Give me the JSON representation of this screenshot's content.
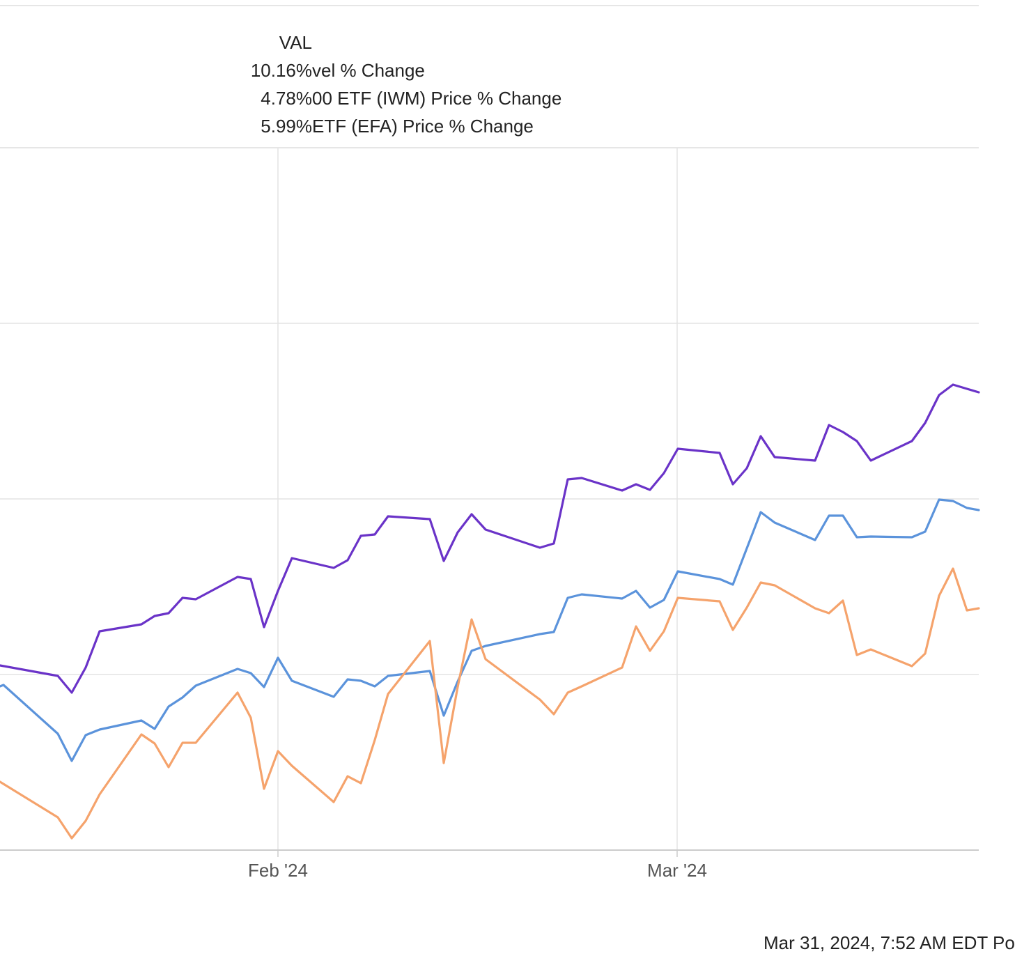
{
  "legend": {
    "value_header": "VAL",
    "rows": [
      {
        "name": "vel % Change",
        "value": "10.16%"
      },
      {
        "name": "00 ETF (IWM) Price % Change",
        "value": "4.78%"
      },
      {
        "name": "ETF (EFA) Price % Change",
        "value": "5.99%"
      }
    ]
  },
  "footer": {
    "text": "Mar 31, 2024, 7:52 AM EDT Po"
  },
  "chart_data": {
    "type": "line",
    "x_tick_labels": [
      "Feb '24",
      "Mar '24"
    ],
    "grid": true,
    "legend_placement": "top-left",
    "series": [
      {
        "name": "vel % Change",
        "color": "#6a33c8",
        "points": [
          [
            0,
            955
          ],
          [
            83,
            970
          ],
          [
            103,
            994
          ],
          [
            123,
            958
          ],
          [
            143,
            906
          ],
          [
            203,
            896
          ],
          [
            222,
            884
          ],
          [
            242,
            880
          ],
          [
            262,
            858
          ],
          [
            281,
            860
          ],
          [
            341,
            828
          ],
          [
            360,
            831
          ],
          [
            379,
            900
          ],
          [
            399,
            848
          ],
          [
            419,
            801
          ],
          [
            479,
            815
          ],
          [
            499,
            804
          ],
          [
            518,
            769
          ],
          [
            538,
            767
          ],
          [
            557,
            741
          ],
          [
            617,
            745
          ],
          [
            637,
            805
          ],
          [
            657,
            764
          ],
          [
            677,
            738
          ],
          [
            697,
            760
          ],
          [
            775,
            786
          ],
          [
            795,
            780
          ],
          [
            815,
            688
          ],
          [
            835,
            686
          ],
          [
            893,
            704
          ],
          [
            913,
            695
          ],
          [
            933,
            703
          ],
          [
            953,
            679
          ],
          [
            973,
            644
          ],
          [
            1033,
            650
          ],
          [
            1052,
            695
          ],
          [
            1072,
            672
          ],
          [
            1092,
            626
          ],
          [
            1112,
            656
          ],
          [
            1170,
            661
          ],
          [
            1190,
            610
          ],
          [
            1210,
            620
          ],
          [
            1230,
            633
          ],
          [
            1250,
            661
          ],
          [
            1309,
            633
          ],
          [
            1328,
            607
          ],
          [
            1348,
            567
          ],
          [
            1368,
            552
          ],
          [
            1388,
            558
          ],
          [
            1405,
            563
          ]
        ]
      },
      {
        "name": "00 ETF (IWM) Price % Change",
        "color": "#5b93db",
        "points": [
          [
            0,
            985
          ],
          [
            5,
            983
          ],
          [
            83,
            1053
          ],
          [
            103,
            1092
          ],
          [
            123,
            1055
          ],
          [
            143,
            1047
          ],
          [
            203,
            1034
          ],
          [
            222,
            1046
          ],
          [
            242,
            1014
          ],
          [
            262,
            1001
          ],
          [
            281,
            984
          ],
          [
            341,
            960
          ],
          [
            360,
            966
          ],
          [
            379,
            986
          ],
          [
            399,
            944
          ],
          [
            419,
            977
          ],
          [
            479,
            1000
          ],
          [
            499,
            975
          ],
          [
            518,
            977
          ],
          [
            538,
            985
          ],
          [
            557,
            970
          ],
          [
            617,
            963
          ],
          [
            637,
            1027
          ],
          [
            657,
            978
          ],
          [
            677,
            934
          ],
          [
            697,
            927
          ],
          [
            775,
            910
          ],
          [
            795,
            907
          ],
          [
            815,
            858
          ],
          [
            835,
            853
          ],
          [
            893,
            859
          ],
          [
            913,
            848
          ],
          [
            933,
            872
          ],
          [
            953,
            861
          ],
          [
            973,
            820
          ],
          [
            1033,
            831
          ],
          [
            1052,
            839
          ],
          [
            1072,
            787
          ],
          [
            1092,
            735
          ],
          [
            1112,
            750
          ],
          [
            1170,
            775
          ],
          [
            1190,
            740
          ],
          [
            1210,
            740
          ],
          [
            1230,
            771
          ],
          [
            1250,
            770
          ],
          [
            1309,
            771
          ],
          [
            1328,
            763
          ],
          [
            1348,
            717
          ],
          [
            1368,
            719
          ],
          [
            1388,
            729
          ],
          [
            1405,
            732
          ]
        ]
      },
      {
        "name": "ETF (EFA) Price % Change",
        "color": "#f5a36c",
        "points": [
          [
            0,
            1122
          ],
          [
            83,
            1173
          ],
          [
            103,
            1203
          ],
          [
            123,
            1178
          ],
          [
            143,
            1140
          ],
          [
            203,
            1054
          ],
          [
            222,
            1067
          ],
          [
            242,
            1101
          ],
          [
            262,
            1066
          ],
          [
            281,
            1066
          ],
          [
            341,
            994
          ],
          [
            360,
            1030
          ],
          [
            379,
            1132
          ],
          [
            399,
            1078
          ],
          [
            419,
            1099
          ],
          [
            479,
            1151
          ],
          [
            499,
            1114
          ],
          [
            518,
            1124
          ],
          [
            538,
            1062
          ],
          [
            557,
            996
          ],
          [
            617,
            920
          ],
          [
            637,
            1095
          ],
          [
            657,
            986
          ],
          [
            677,
            889
          ],
          [
            697,
            946
          ],
          [
            775,
            1004
          ],
          [
            795,
            1025
          ],
          [
            815,
            994
          ],
          [
            835,
            985
          ],
          [
            893,
            958
          ],
          [
            913,
            899
          ],
          [
            933,
            934
          ],
          [
            953,
            906
          ],
          [
            973,
            858
          ],
          [
            1033,
            863
          ],
          [
            1052,
            904
          ],
          [
            1072,
            872
          ],
          [
            1092,
            836
          ],
          [
            1112,
            840
          ],
          [
            1170,
            873
          ],
          [
            1190,
            880
          ],
          [
            1210,
            862
          ],
          [
            1230,
            940
          ],
          [
            1250,
            932
          ],
          [
            1309,
            956
          ],
          [
            1328,
            938
          ],
          [
            1348,
            855
          ],
          [
            1368,
            816
          ],
          [
            1388,
            876
          ],
          [
            1405,
            873
          ]
        ]
      }
    ]
  }
}
